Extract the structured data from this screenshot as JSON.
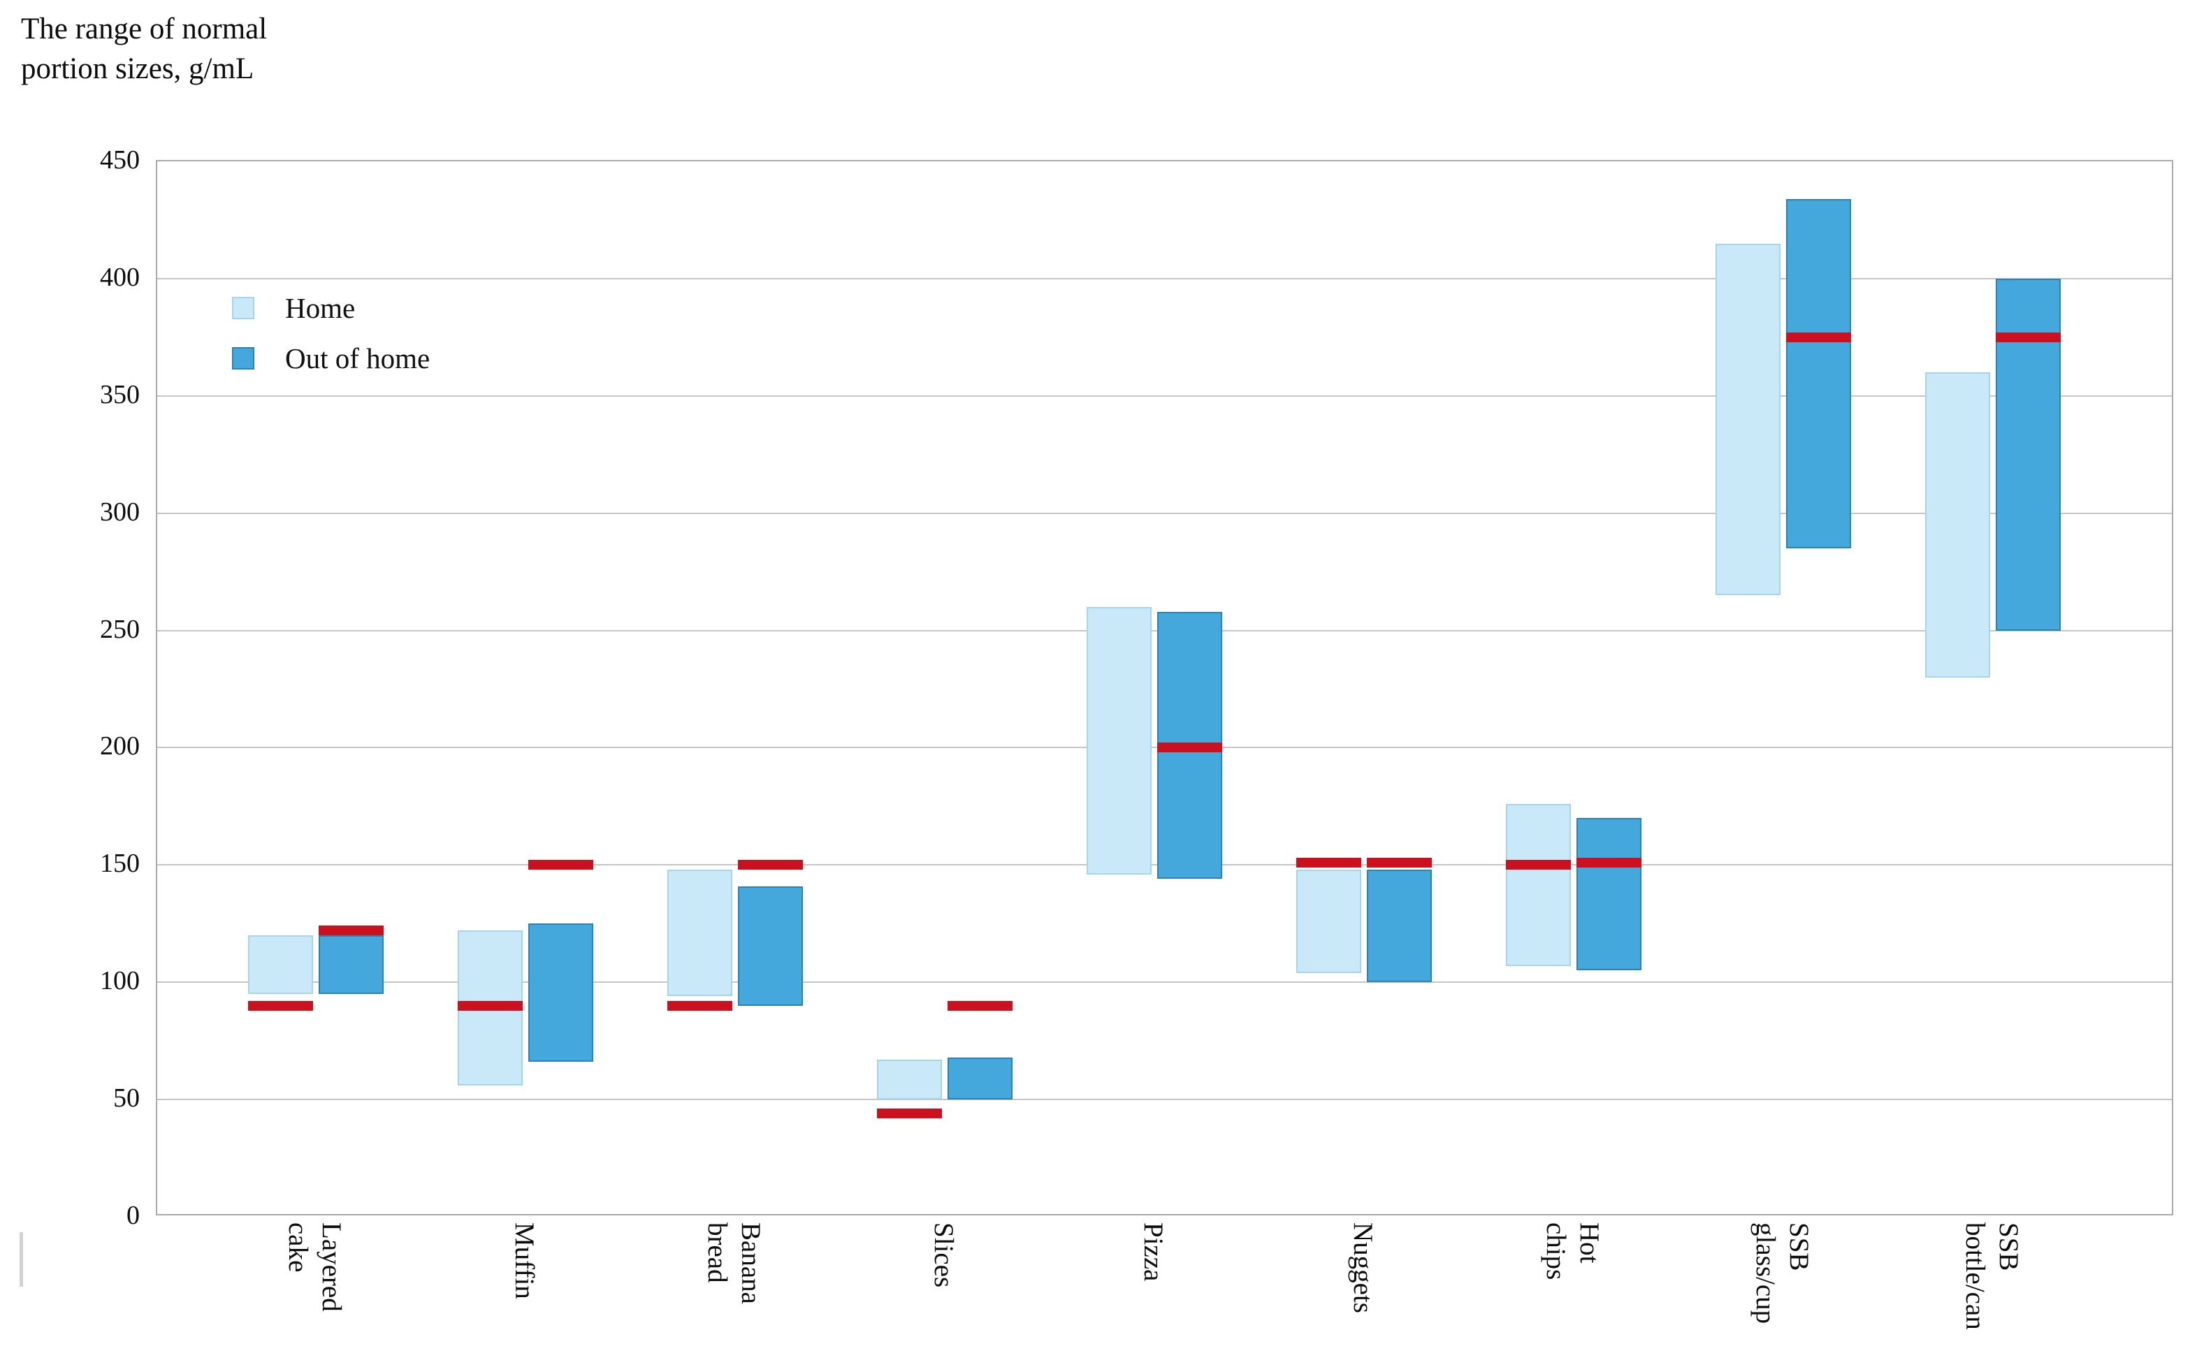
{
  "title": "The range of normal\nportion sizes, g/mL",
  "legend": {
    "home_label": "Home",
    "out_label": "Out of home"
  },
  "colors": {
    "home": "#C9E9F8",
    "home_border": "#A5D5EC",
    "out": "#44A8DC",
    "out_border": "#2B83B4",
    "marker": "#CB1020",
    "gridline": "#C6C6C6",
    "axis": "#ABABAB",
    "text": "#0D0D0D"
  },
  "chart_data": {
    "type": "bar",
    "subtype": "floating-range-bars-with-marker-lines",
    "title": "The range of normal portion sizes, g/mL",
    "ylabel": "portion size, g/mL",
    "ylim": [
      0,
      450
    ],
    "ytick_step": 50,
    "grid": "horizontal",
    "legend_position": "inside-top-left",
    "series_names": [
      "Home",
      "Out of home"
    ],
    "marker_meaning": "red reference line",
    "categories": [
      {
        "label": [
          "Layered",
          "cake"
        ],
        "home": {
          "min": 95,
          "max": 120,
          "marker": 90
        },
        "out": {
          "min": 95,
          "max": 120,
          "marker": 122
        }
      },
      {
        "label": [
          "Muffin"
        ],
        "home": {
          "min": 56,
          "max": 122,
          "marker": 90
        },
        "out": {
          "min": 66,
          "max": 125,
          "marker": 150
        }
      },
      {
        "label": [
          "Banana",
          "bread"
        ],
        "home": {
          "min": 94,
          "max": 148,
          "marker": 90
        },
        "out": {
          "min": 90,
          "max": 141,
          "marker": 150
        }
      },
      {
        "label": [
          "Slices"
        ],
        "home": {
          "min": 50,
          "max": 67,
          "marker": 44
        },
        "out": {
          "min": 50,
          "max": 68,
          "marker": 90
        }
      },
      {
        "label": [
          "Pizza"
        ],
        "home": {
          "min": 146,
          "max": 260,
          "marker": null
        },
        "out": {
          "min": 144,
          "max": 258,
          "marker": 200
        }
      },
      {
        "label": [
          "Nuggets"
        ],
        "home": {
          "min": 104,
          "max": 148,
          "marker": 151
        },
        "out": {
          "min": 100,
          "max": 148,
          "marker": 151
        }
      },
      {
        "label": [
          "Hot",
          "chips"
        ],
        "home": {
          "min": 107,
          "max": 176,
          "marker": 150
        },
        "out": {
          "min": 105,
          "max": 170,
          "marker": 151
        }
      },
      {
        "label": [
          "SSB",
          "glass/cup"
        ],
        "home": {
          "min": 265,
          "max": 415,
          "marker": null
        },
        "out": {
          "min": 285,
          "max": 434,
          "marker": 375
        }
      },
      {
        "label": [
          "SSB",
          "bottle/can"
        ],
        "home": {
          "min": 230,
          "max": 360,
          "marker": null
        },
        "out": {
          "min": 250,
          "max": 400,
          "marker": 375
        }
      }
    ]
  }
}
